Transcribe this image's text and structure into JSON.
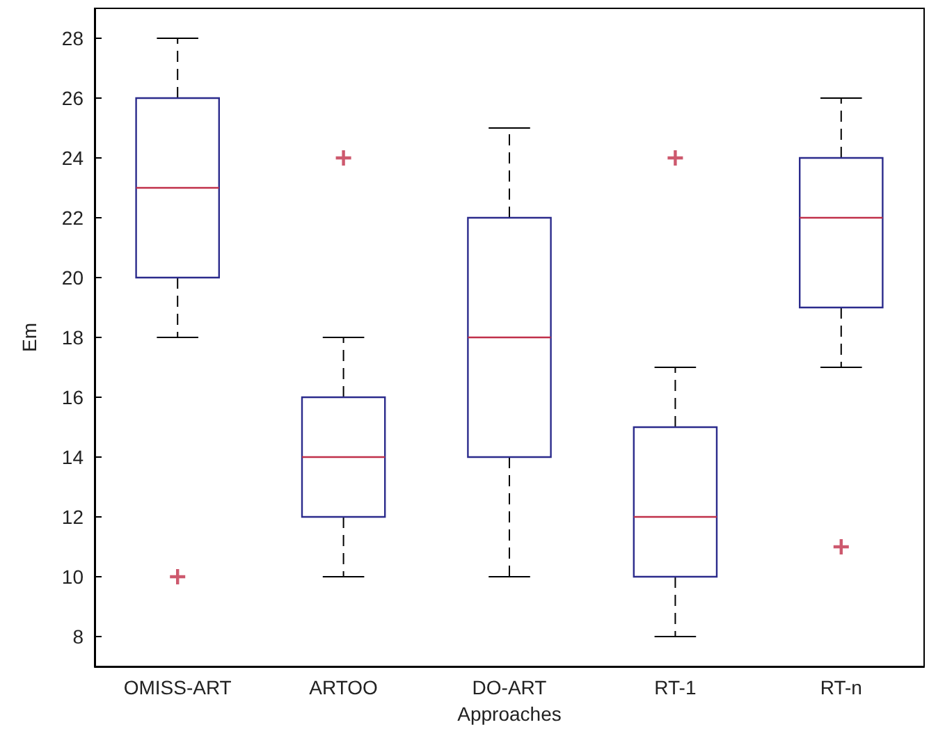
{
  "chart_data": {
    "type": "box",
    "xlabel": "Approaches",
    "ylabel": "Em",
    "categories": [
      "OMISS-ART",
      "ARTOO",
      "DO-ART",
      "RT-1",
      "RT-n"
    ],
    "boxes": [
      {
        "low": 18,
        "q1": 20,
        "median": 23,
        "q3": 26,
        "high": 28,
        "outliers": [
          10
        ]
      },
      {
        "low": 10,
        "q1": 12,
        "median": 14,
        "q3": 16,
        "high": 18,
        "outliers": [
          24
        ]
      },
      {
        "low": 10,
        "q1": 14,
        "median": 18,
        "q3": 22,
        "high": 25
      },
      {
        "low": 8,
        "q1": 10,
        "median": 12,
        "q3": 15,
        "high": 17,
        "outliers": [
          24
        ]
      },
      {
        "low": 17,
        "q1": 19,
        "median": 22,
        "q3": 24,
        "high": 26,
        "outliers": [
          11
        ]
      }
    ],
    "color": "#2b2b8c",
    "ylim": [
      7,
      29
    ],
    "yticks": [
      8,
      10,
      12,
      14,
      16,
      18,
      20,
      22,
      24,
      26,
      28
    ],
    "grid": false
  }
}
